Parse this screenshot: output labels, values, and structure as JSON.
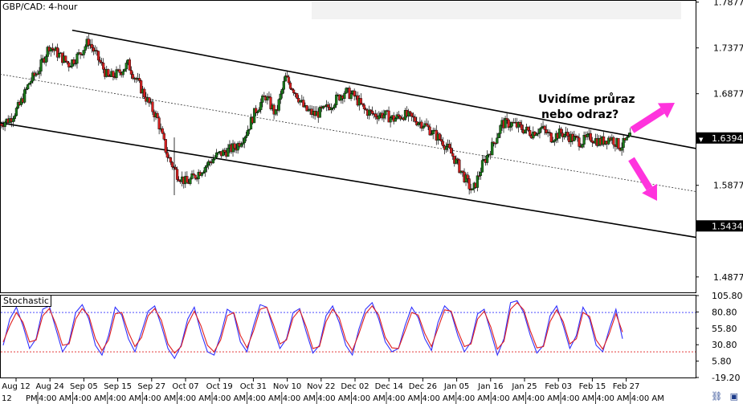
{
  "window": {
    "symbol_label": "GBP/CAD: 4-hour",
    "annotation_line1": "Uvidíme průraz",
    "annotation_line2": "nebo odraz?",
    "indicator_label": "Stochastic",
    "bottom_left_text": "12",
    "bottom_pm_text": "PM"
  },
  "colors": {
    "bull": "#1a7a1a",
    "bear": "#d62020",
    "arrow": "#ff33dd",
    "k_line": "#3030ff",
    "d_line": "#e02020",
    "level_upper": "#3030ff",
    "level_lower": "#e02020",
    "price_box": "#000000"
  },
  "chart_data": [
    {
      "type": "candlestick",
      "title": "GBP/CAD: 4-hour",
      "ylim": [
        1.47,
        1.79
      ],
      "y_ticks": [
        "1.7877",
        "1.7377",
        "1.6877",
        "1.6394",
        "1.5877",
        "1.5434",
        "1.4877"
      ],
      "y_tick_values": [
        1.7877,
        1.7377,
        1.6877,
        1.6394,
        1.5877,
        1.5434,
        1.4877
      ],
      "current_price": "1.6394",
      "marked_price": "1.5434",
      "x_ticks": [
        "Aug 12",
        "Aug 24",
        "Sep 05",
        "Sep 15",
        "Sep 27",
        "Oct 07",
        "Oct 19",
        "Oct 31",
        "Nov 10",
        "Nov 22",
        "Dec 02",
        "Dec 14",
        "Dec 26",
        "Jan 05",
        "Jan 16",
        "Jan 25",
        "Feb 03",
        "Feb 15",
        "Feb 27"
      ],
      "time_labels": [
        "4:00 AM",
        "4:00 AM",
        "4:00 AM",
        "4:00 AM",
        "4:00 AM",
        "4:00 AM",
        "4:00 AM",
        "4:00 AM",
        "4:00 AM",
        "4:00 AM",
        "4:00 AM",
        "4:00 AM",
        "4:00 AM",
        "4:00 AM",
        "4:00 AM",
        "4:00 AM",
        "4:00 AM",
        "4:00 AM"
      ],
      "close_path": [
        [
          0,
          1.655
        ],
        [
          3,
          1.66
        ],
        [
          6,
          1.675
        ],
        [
          9,
          1.7
        ],
        [
          12,
          1.715
        ],
        [
          15,
          1.74
        ],
        [
          18,
          1.73
        ],
        [
          21,
          1.72
        ],
        [
          24,
          1.73
        ],
        [
          27,
          1.745
        ],
        [
          30,
          1.725
        ],
        [
          33,
          1.705
        ],
        [
          36,
          1.71
        ],
        [
          39,
          1.72
        ],
        [
          42,
          1.7
        ],
        [
          45,
          1.68
        ],
        [
          48,
          1.66
        ],
        [
          51,
          1.62
        ],
        [
          54,
          1.6
        ],
        [
          57,
          1.59
        ],
        [
          60,
          1.6
        ],
        [
          63,
          1.61
        ],
        [
          66,
          1.62
        ],
        [
          69,
          1.625
        ],
        [
          72,
          1.63
        ],
        [
          75,
          1.645
        ],
        [
          78,
          1.67
        ],
        [
          81,
          1.685
        ],
        [
          84,
          1.665
        ],
        [
          87,
          1.705
        ],
        [
          90,
          1.69
        ],
        [
          93,
          1.67
        ],
        [
          96,
          1.665
        ],
        [
          99,
          1.67
        ],
        [
          102,
          1.68
        ],
        [
          105,
          1.69
        ],
        [
          108,
          1.685
        ],
        [
          111,
          1.67
        ],
        [
          114,
          1.665
        ],
        [
          117,
          1.665
        ],
        [
          120,
          1.66
        ],
        [
          123,
          1.665
        ],
        [
          126,
          1.66
        ],
        [
          129,
          1.655
        ],
        [
          132,
          1.645
        ],
        [
          135,
          1.635
        ],
        [
          138,
          1.62
        ],
        [
          141,
          1.6
        ],
        [
          144,
          1.58
        ],
        [
          147,
          1.61
        ],
        [
          150,
          1.63
        ],
        [
          153,
          1.655
        ],
        [
          156,
          1.655
        ],
        [
          159,
          1.65
        ],
        [
          162,
          1.645
        ],
        [
          165,
          1.65
        ],
        [
          168,
          1.64
        ],
        [
          171,
          1.645
        ],
        [
          174,
          1.64
        ],
        [
          177,
          1.635
        ],
        [
          180,
          1.64
        ],
        [
          183,
          1.635
        ],
        [
          186,
          1.64
        ],
        [
          189,
          1.63
        ],
        [
          192,
          1.6394
        ]
      ],
      "channel": {
        "upper": [
          [
            22,
            1.757
          ],
          [
            212,
            1.628
          ]
        ],
        "middle": [
          [
            0,
            1.709
          ],
          [
            212,
            1.581
          ]
        ],
        "lower": [
          [
            0,
            1.656
          ],
          [
            212,
            1.531
          ]
        ]
      }
    },
    {
      "type": "line",
      "title": "Stochastic",
      "ylim": [
        -19.2,
        105.8
      ],
      "y_ticks": [
        "105.80",
        "80.80",
        "55.80",
        "30.80",
        "5.80",
        "-19.20"
      ],
      "y_tick_values": [
        105.8,
        80.8,
        55.8,
        30.8,
        5.8,
        -19.2
      ],
      "levels": [
        80,
        20
      ],
      "series": [
        {
          "name": "%K",
          "values": [
            30,
            70,
            88,
            60,
            25,
            40,
            85,
            90,
            55,
            20,
            35,
            80,
            92,
            70,
            30,
            15,
            45,
            88,
            76,
            40,
            20,
            50,
            82,
            90,
            60,
            25,
            10,
            30,
            70,
            88,
            50,
            20,
            15,
            45,
            85,
            78,
            35,
            20,
            60,
            92,
            88,
            55,
            25,
            40,
            80,
            86,
            50,
            18,
            30,
            75,
            90,
            65,
            30,
            15,
            55,
            85,
            95,
            70,
            35,
            20,
            25,
            60,
            88,
            72,
            40,
            22,
            65,
            90,
            80,
            45,
            20,
            35,
            78,
            85,
            50,
            15,
            40,
            95,
            98,
            80,
            45,
            18,
            30,
            75,
            90,
            60,
            25,
            45,
            88,
            70,
            30,
            20,
            55,
            85,
            40
          ]
        },
        {
          "name": "%D",
          "values": [
            35,
            60,
            80,
            65,
            35,
            38,
            75,
            86,
            62,
            30,
            32,
            70,
            86,
            75,
            40,
            22,
            38,
            78,
            80,
            50,
            28,
            42,
            75,
            86,
            68,
            32,
            18,
            28,
            62,
            82,
            60,
            30,
            20,
            38,
            75,
            80,
            45,
            26,
            52,
            85,
            88,
            62,
            32,
            38,
            72,
            84,
            58,
            25,
            28,
            66,
            85,
            72,
            38,
            22,
            48,
            78,
            90,
            76,
            42,
            26,
            25,
            52,
            80,
            76,
            48,
            28,
            56,
            84,
            82,
            52,
            28,
            32,
            70,
            82,
            58,
            24,
            36,
            85,
            95,
            84,
            52,
            26,
            28,
            66,
            84,
            66,
            32,
            40,
            80,
            74,
            38,
            24,
            48,
            78,
            50
          ]
        }
      ]
    }
  ]
}
